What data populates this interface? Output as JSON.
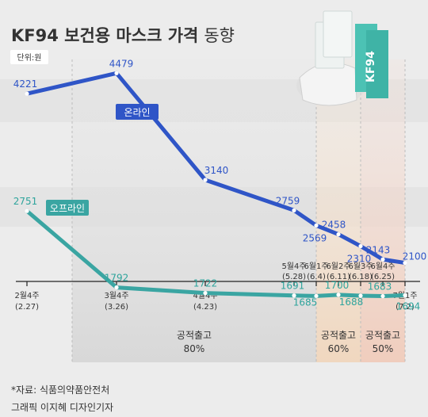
{
  "title_main": "KF94 보건용 마스크 가격",
  "title_sub": "동향",
  "unit_label": "단위:원",
  "footer": {
    "source": "*자료: 식품의약품안전처",
    "credit": "그래픽 이지혜 디자인기자"
  },
  "colors": {
    "online": "#2f55c7",
    "offline": "#3aa5a2",
    "online_label_text": "#2f55c7",
    "offline_label_text": "#2ea49c",
    "band_80": "#dcdcdc",
    "band_60": "#f1dcc6",
    "band_50": "#f2d2c5",
    "text": "#333333",
    "background": "#ececec"
  },
  "chart_data": {
    "type": "line",
    "x": [
      "2월4주\n(2.27)",
      "3월4주\n(3.26)",
      "4월4주\n(4.23)",
      "5월4주\n(5.28)",
      "6월1주\n(6.4)",
      "6월2주\n(6.11)",
      "6월3주\n(6.18)",
      "6월4주\n(6.25)",
      "7월1주\n(7.2)"
    ],
    "series": [
      {
        "name": "온라인",
        "values": [
          4221,
          4479,
          3140,
          2759,
          2569,
          2458,
          2310,
          2143,
          2100
        ]
      },
      {
        "name": "오프라인",
        "values": [
          2751,
          1792,
          1722,
          1691,
          1685,
          1700,
          1688,
          1683,
          1694
        ]
      }
    ],
    "ylim": [
      1400,
      4800
    ],
    "grid": false,
    "annotations": [
      {
        "label_line1": "공적출고",
        "label_line2": "80%",
        "from": 0,
        "to": 4
      },
      {
        "label_line1": "공적출고",
        "label_line2": "60%",
        "from": 4,
        "to": 6
      },
      {
        "label_line1": "공적출고",
        "label_line2": "50%",
        "from": 6,
        "to": 8
      }
    ]
  }
}
